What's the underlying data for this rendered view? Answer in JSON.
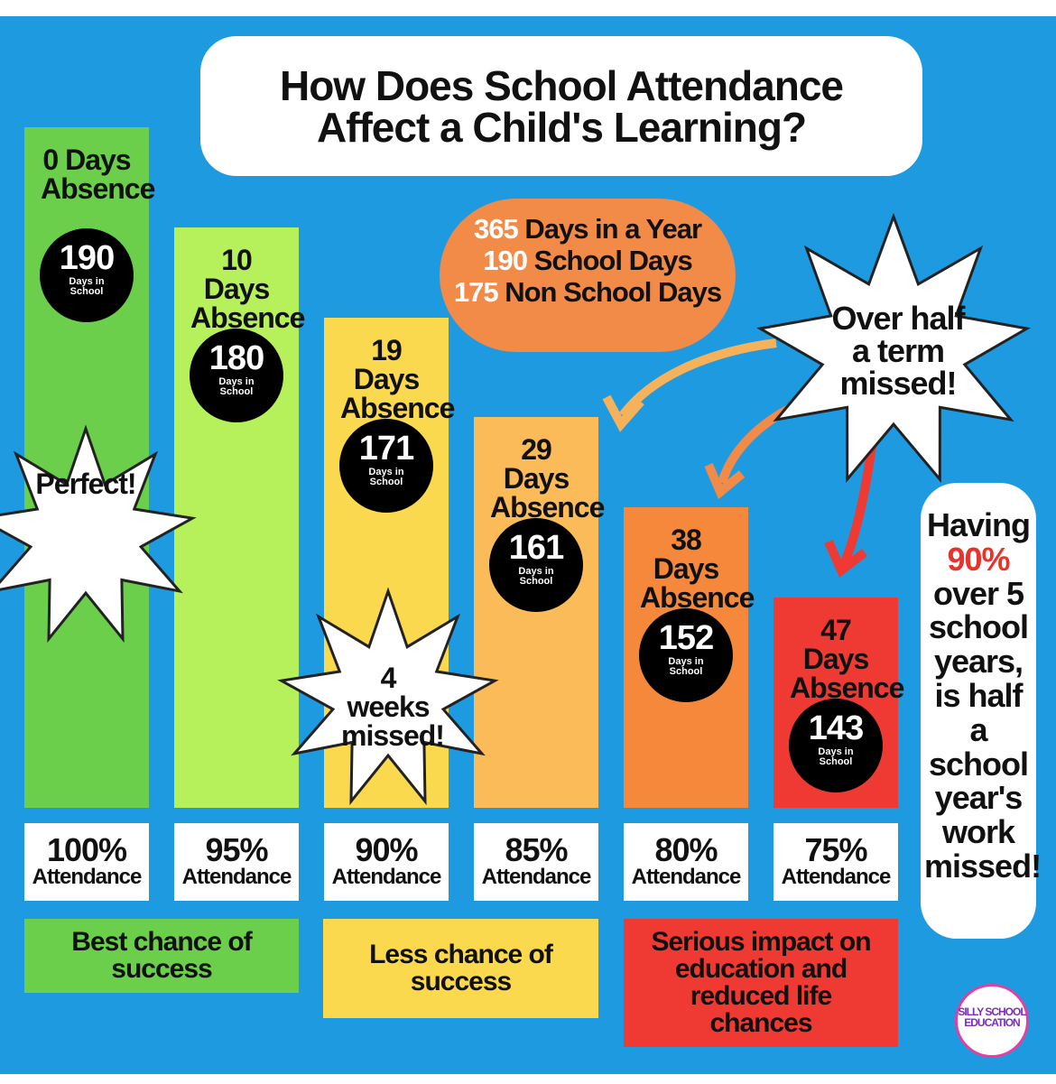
{
  "title": "How Does School Attendance Affect a Child's Learning?",
  "columns": [
    {
      "absence": "0 Days Absence",
      "days": 190,
      "attendance": "100%",
      "color": "#6bcf4c"
    },
    {
      "absence": "10 Days Absence",
      "days": 180,
      "attendance": "95%",
      "color": "#b6f05a"
    },
    {
      "absence": "19 Days Absence",
      "days": 171,
      "attendance": "90%",
      "color": "#fbd94e"
    },
    {
      "absence": "29 Days Absence",
      "days": 161,
      "attendance": "85%",
      "color": "#fbbb58"
    },
    {
      "absence": "38 Days Absence",
      "days": 152,
      "attendance": "80%",
      "color": "#f5883a"
    },
    {
      "absence": "47 Days Absence",
      "days": 143,
      "attendance": "75%",
      "color": "#ee3a32"
    }
  ],
  "days_caption": "Days in School",
  "attendance_caption": "Attendance",
  "year_facts": [
    {
      "number": "365",
      "text": "Days in a Year"
    },
    {
      "number": "190",
      "text": "School Days"
    },
    {
      "number": "175",
      "text": "Non School Days"
    }
  ],
  "callouts": {
    "perfect": "Perfect!",
    "weeks": "4 weeks missed!",
    "half_term": "Over half a term missed!"
  },
  "side_note": {
    "before": "Having",
    "highlight": "90%",
    "after": "over 5 school years, is half a school year's work missed!"
  },
  "bands": [
    {
      "text": "Best chance of success",
      "color": "#6bcf4c"
    },
    {
      "text": "Less chance of success",
      "color": "#fbd94e"
    },
    {
      "text": "Serious impact on education and reduced life chances",
      "color": "#ee3a32"
    }
  ],
  "logo": "SILLY SCHOOL EDUCATION"
}
